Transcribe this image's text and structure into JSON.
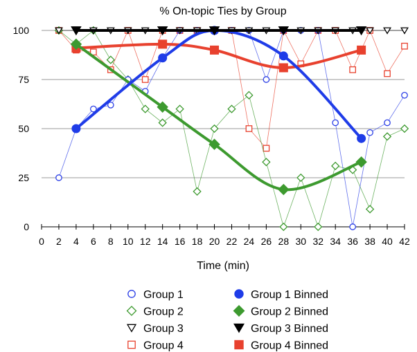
{
  "chart_data": {
    "type": "line",
    "title": "% On-topic Ties by Group",
    "xlabel": "Time (min)",
    "ylabel": "",
    "xlim": [
      0,
      42
    ],
    "ylim": [
      0,
      100
    ],
    "xticks": [
      0,
      2,
      4,
      6,
      8,
      10,
      12,
      14,
      16,
      18,
      20,
      22,
      24,
      26,
      28,
      30,
      32,
      34,
      36,
      38,
      40,
      42
    ],
    "yticks": [
      0,
      25,
      50,
      75,
      100
    ],
    "grid": "horizontal",
    "legend_position": "bottom",
    "series": [
      {
        "name": "Group 1",
        "kind": "raw",
        "marker": "circle-open",
        "color": "#2b3fe6",
        "x": [
          2,
          4,
          6,
          8,
          10,
          12,
          14,
          16,
          18,
          20,
          22,
          24,
          26,
          28,
          30,
          32,
          34,
          36,
          38,
          40,
          42
        ],
        "y": [
          25,
          50,
          60,
          62,
          75,
          69,
          86,
          100,
          100,
          100,
          100,
          100,
          75,
          100,
          100,
          100,
          53,
          0,
          48,
          53,
          67
        ]
      },
      {
        "name": "Group 2",
        "kind": "raw",
        "marker": "diamond-open",
        "color": "#3d9a2f",
        "x": [
          2,
          4,
          6,
          8,
          10,
          12,
          14,
          16,
          18,
          20,
          22,
          24,
          26,
          28,
          30,
          32,
          34,
          36,
          38,
          40,
          42
        ],
        "y": [
          100,
          93,
          100,
          85,
          75,
          60,
          53,
          60,
          18,
          50,
          60,
          67,
          33,
          0,
          25,
          0,
          31,
          29,
          9,
          46,
          50
        ]
      },
      {
        "name": "Group 3",
        "kind": "raw",
        "marker": "triangle-down-open",
        "color": "#000000",
        "x": [
          2,
          4,
          6,
          8,
          10,
          12,
          14,
          16,
          18,
          20,
          22,
          24,
          26,
          28,
          30,
          32,
          34,
          36,
          38,
          40,
          42
        ],
        "y": [
          100,
          100,
          100,
          100,
          100,
          100,
          100,
          100,
          100,
          100,
          100,
          100,
          100,
          100,
          100,
          100,
          100,
          100,
          100,
          100,
          100
        ]
      },
      {
        "name": "Group 4",
        "kind": "raw",
        "marker": "square-open",
        "color": "#e8412e",
        "x": [
          2,
          4,
          6,
          8,
          10,
          12,
          14,
          16,
          18,
          20,
          22,
          24,
          26,
          28,
          30,
          32,
          34,
          36,
          38,
          40,
          42
        ],
        "y": [
          100,
          90,
          89,
          80,
          100,
          75,
          100,
          100,
          100,
          100,
          100,
          50,
          40,
          100,
          83,
          100,
          100,
          80,
          100,
          78,
          92
        ]
      },
      {
        "name": "Group 1 Binned",
        "kind": "binned",
        "marker": "circle-filled",
        "color": "#1f3ce8",
        "x": [
          4,
          14,
          20,
          28,
          37
        ],
        "y": [
          50,
          86,
          100,
          87,
          45
        ]
      },
      {
        "name": "Group 2 Binned",
        "kind": "binned",
        "marker": "diamond-filled",
        "color": "#3d9a2f",
        "x": [
          4,
          14,
          20,
          28,
          37
        ],
        "y": [
          93,
          61,
          42,
          19,
          33
        ]
      },
      {
        "name": "Group 3 Binned",
        "kind": "binned",
        "marker": "triangle-down-filled",
        "color": "#000000",
        "x": [
          4,
          14,
          20,
          28,
          37
        ],
        "y": [
          100,
          100,
          100,
          100,
          100
        ]
      },
      {
        "name": "Group 4 Binned",
        "kind": "binned",
        "marker": "square-filled",
        "color": "#e8412e",
        "x": [
          4,
          14,
          20,
          28,
          37
        ],
        "y": [
          91,
          93,
          90,
          81,
          90
        ]
      }
    ]
  }
}
